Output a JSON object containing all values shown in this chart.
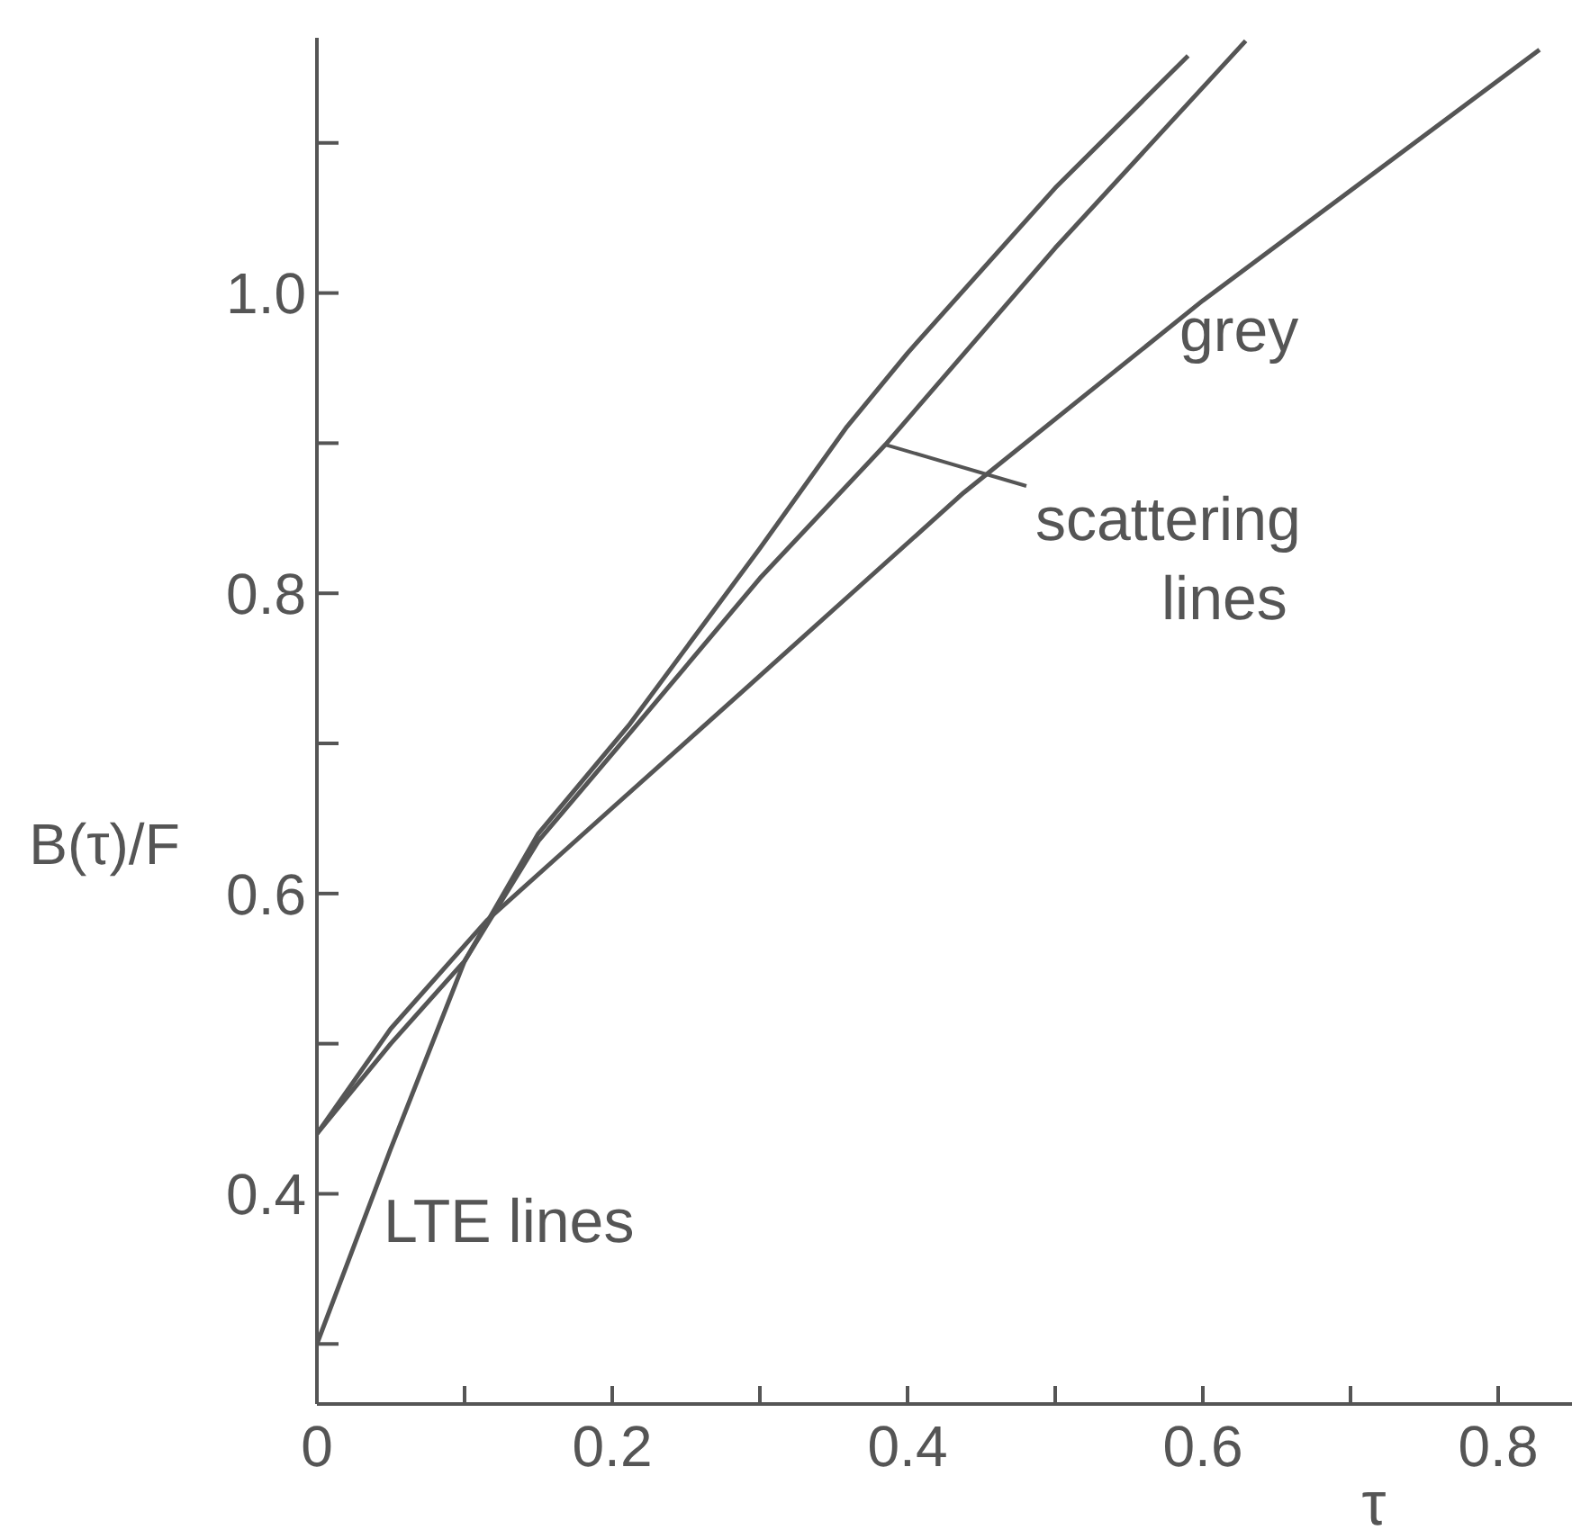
{
  "chart_data": {
    "type": "line",
    "xlabel": "τ",
    "ylabel": "B(τ)/F",
    "xlim": [
      0,
      0.85
    ],
    "ylim": [
      0.26,
      1.17
    ],
    "xticks": [
      0,
      {
        "value": 0.1,
        "label": null
      },
      0.2,
      {
        "value": 0.3,
        "label": null
      },
      0.4,
      {
        "value": 0.5,
        "label": null
      },
      0.6,
      {
        "value": 0.7,
        "label": null
      },
      0.8
    ],
    "yticks": [
      {
        "value": 0.3,
        "label": null
      },
      0.4,
      {
        "value": 0.5,
        "label": null
      },
      0.6,
      {
        "value": 0.7,
        "label": null
      },
      0.8,
      {
        "value": 0.9,
        "label": null
      },
      {
        "value": 1.0,
        "label": "1.0"
      },
      {
        "value": 1.1,
        "label": null
      }
    ],
    "grid": false,
    "legend": false,
    "marker": "none",
    "line_style": "solid",
    "series": [
      {
        "color": "#555555",
        "x": [
          0,
          0.05,
          0.1,
          0.15,
          0.212,
          0.3,
          0.359,
          0.4,
          0.5,
          0.59
        ],
        "values": [
          0.3,
          0.43,
          0.555,
          0.64,
          0.713,
          0.83,
          0.911,
          0.96,
          1.07,
          1.158
        ]
      },
      {
        "color": "#555555",
        "x": [
          0,
          0.05,
          0.1,
          0.15,
          0.212,
          0.3,
          0.385,
          0.5,
          0.629
        ],
        "values": [
          0.44,
          0.5,
          0.555,
          0.635,
          0.707,
          0.81,
          0.899,
          1.03,
          1.168
        ]
      },
      {
        "color": "#555555",
        "x": [
          0,
          0.05,
          0.115,
          0.2,
          0.3,
          0.438,
          0.6,
          0.828
        ],
        "values": [
          0.44,
          0.51,
          0.582,
          0.657,
          0.745,
          0.867,
          0.995,
          1.162
        ]
      }
    ],
    "annotations": [
      "grey",
      {
        "text": "scattering\nlines",
        "x": 0.385,
        "y": 0.899
      },
      "LTE lines"
    ]
  }
}
